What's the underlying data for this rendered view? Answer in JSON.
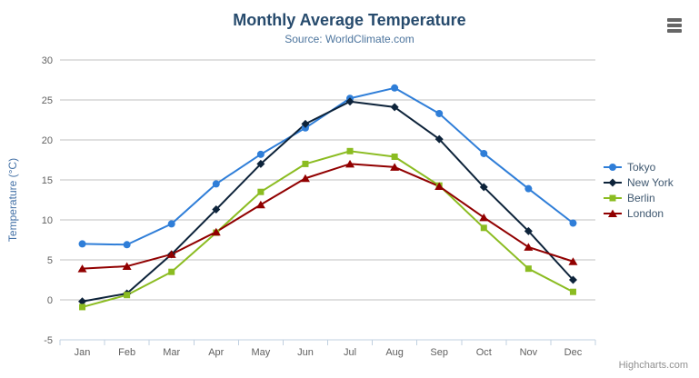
{
  "chart": {
    "title": "Monthly Average Temperature",
    "subtitle": "Source: WorldClimate.com",
    "credits": "Highcharts.com"
  },
  "chart_data": {
    "type": "line",
    "title": "Monthly Average Temperature",
    "subtitle": "Source: WorldClimate.com",
    "categories": [
      "Jan",
      "Feb",
      "Mar",
      "Apr",
      "May",
      "Jun",
      "Jul",
      "Aug",
      "Sep",
      "Oct",
      "Nov",
      "Dec"
    ],
    "xlabel": "",
    "ylabel": "Temperature (°C)",
    "ylim": [
      -5,
      30
    ],
    "ytick_interval": 5,
    "yticks": [
      -5,
      0,
      5,
      10,
      15,
      20,
      25,
      30
    ],
    "grid": true,
    "legend_position": "right",
    "series": [
      {
        "name": "Tokyo",
        "color": "#2f7ed8",
        "marker": "circle",
        "values": [
          7.0,
          6.9,
          9.5,
          14.5,
          18.2,
          21.5,
          25.2,
          26.5,
          23.3,
          18.3,
          13.9,
          9.6
        ]
      },
      {
        "name": "New York",
        "color": "#0d233a",
        "marker": "diamond",
        "values": [
          -0.2,
          0.8,
          5.7,
          11.3,
          17.0,
          22.0,
          24.8,
          24.1,
          20.1,
          14.1,
          8.6,
          2.5
        ]
      },
      {
        "name": "Berlin",
        "color": "#8bbc21",
        "marker": "square",
        "values": [
          -0.9,
          0.6,
          3.5,
          8.4,
          13.5,
          17.0,
          18.6,
          17.9,
          14.3,
          9.0,
          3.9,
          1.0
        ]
      },
      {
        "name": "London",
        "color": "#910000",
        "marker": "triangle",
        "values": [
          3.9,
          4.2,
          5.7,
          8.5,
          11.9,
          15.2,
          17.0,
          16.6,
          14.2,
          10.3,
          6.6,
          4.8
        ]
      }
    ]
  }
}
